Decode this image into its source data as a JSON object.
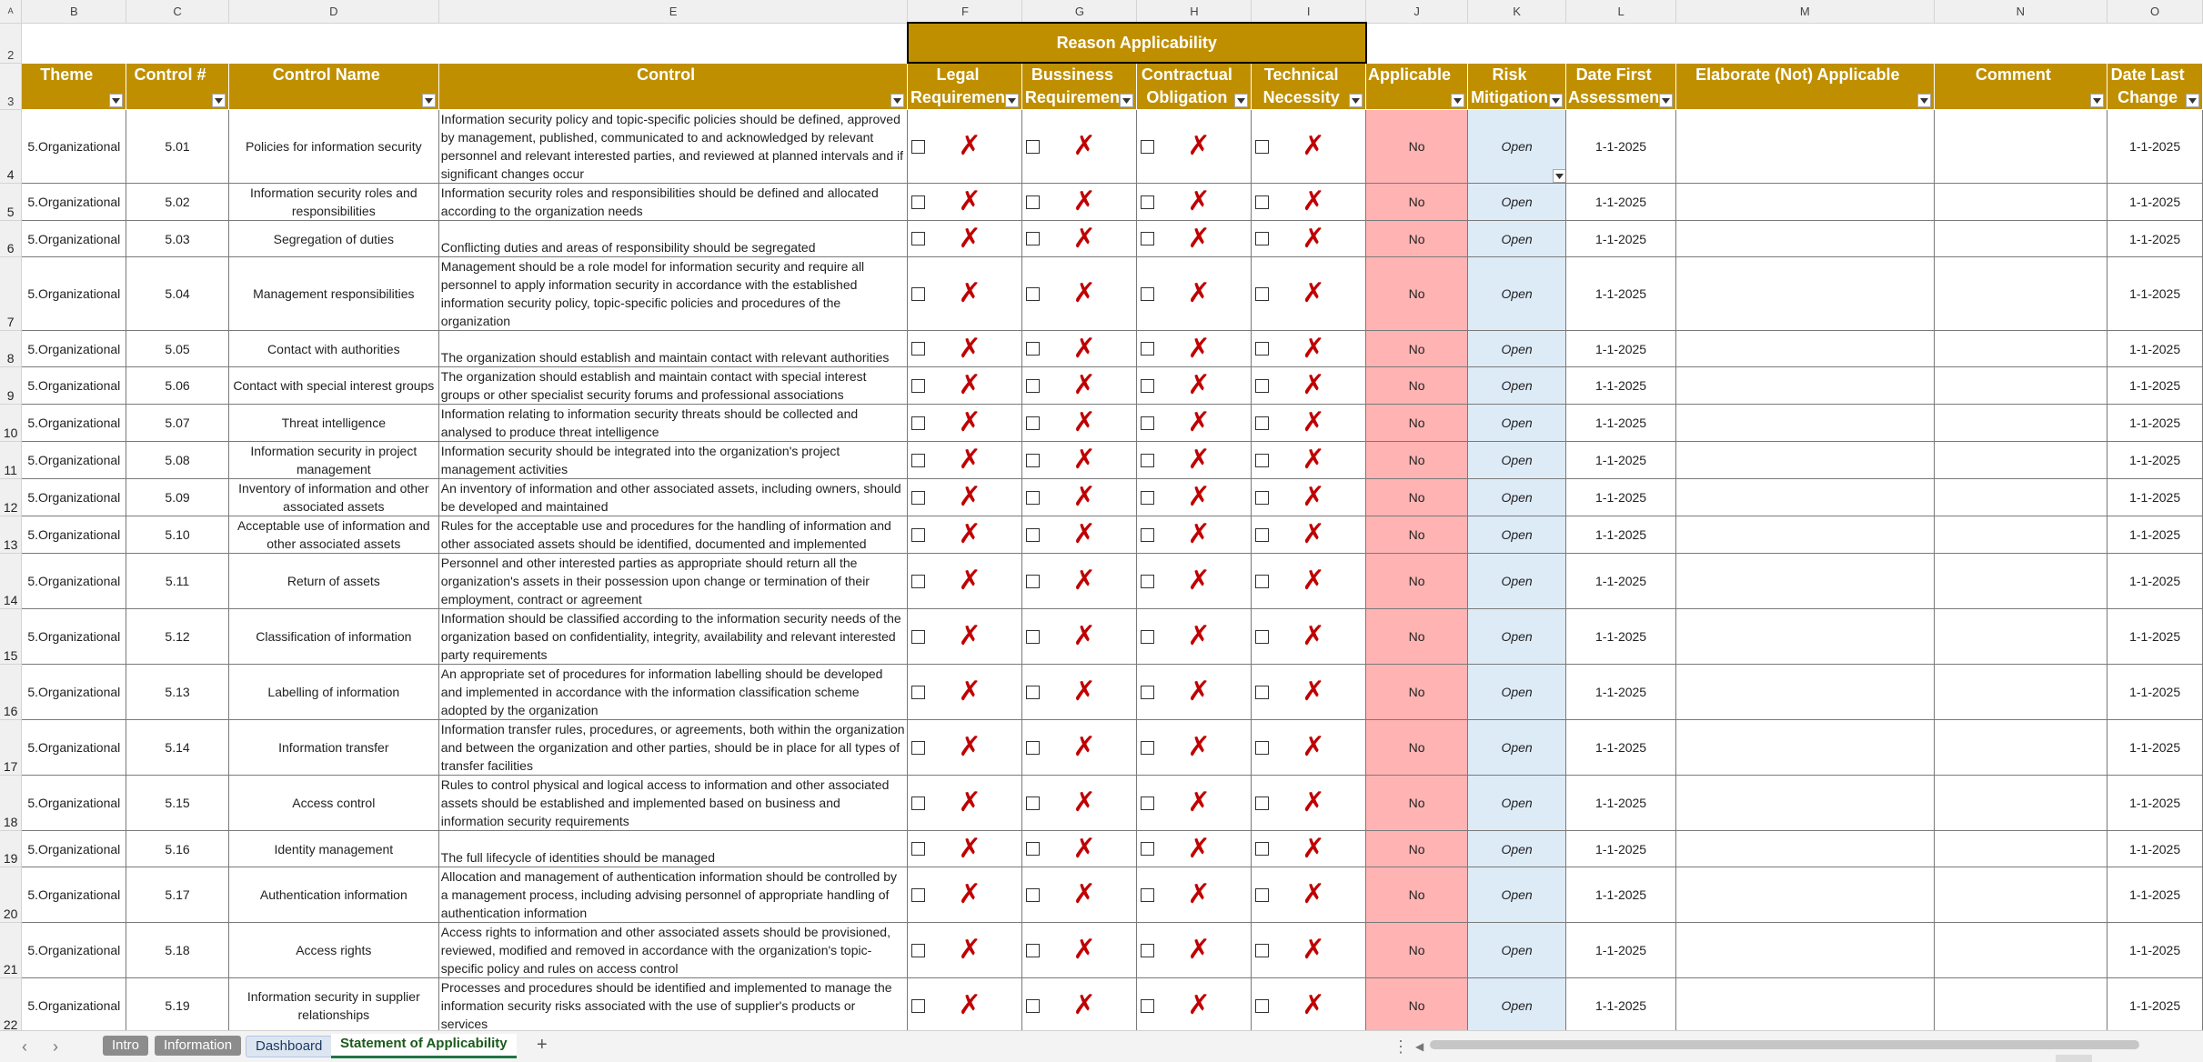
{
  "columns": [
    "A",
    "B",
    "C",
    "D",
    "E",
    "F",
    "G",
    "H",
    "I",
    "J",
    "K",
    "L",
    "M",
    "N",
    "O"
  ],
  "row_numbers": {
    "r2": "2",
    "r3": "3"
  },
  "group_header": "Reason Applicability",
  "headers": {
    "theme": "Theme",
    "control_no": "Control #",
    "control_name": "Control Name",
    "control": "Control",
    "legal": "Legal Requiremen",
    "business": "Bussiness Requiremen",
    "contractual": "Contractual Obligation",
    "technical": "Technical Necessity",
    "applicable": "Applicable",
    "risk": "Risk Mitigation",
    "date_first": "Date First Assessmen",
    "elaborate": "Elaborate (Not) Applicable",
    "comment": "Comment",
    "date_last": "Date Last Change"
  },
  "cross_mark": "✗",
  "rows": [
    {
      "rn": "4",
      "theme": "5.Organizational",
      "id": "5.01",
      "name": "Policies for information security",
      "control": "Information security policy and topic-specific policies should be defined, approved by management, published, communicated to and acknowledged by relevant personnel and relevant interested parties, and reviewed at planned intervals and if significant changes occur",
      "applicable": "No",
      "risk": "Open",
      "date_first": "1-1-2025",
      "date_last": "1-1-2025"
    },
    {
      "rn": "5",
      "theme": "5.Organizational",
      "id": "5.02",
      "name": "Information security roles and responsibilities",
      "control": "Information security roles and responsibilities should be defined and allocated according to the organization needs",
      "applicable": "No",
      "risk": "Open",
      "date_first": "1-1-2025",
      "date_last": "1-1-2025"
    },
    {
      "rn": "6",
      "theme": "5.Organizational",
      "id": "5.03",
      "name": "Segregation of duties",
      "control": "Conflicting duties and areas of responsibility should be segregated",
      "applicable": "No",
      "risk": "Open",
      "date_first": "1-1-2025",
      "date_last": "1-1-2025"
    },
    {
      "rn": "7",
      "theme": "5.Organizational",
      "id": "5.04",
      "name": "Management responsibilities",
      "control": "Management should be a role model for information security and require all personnel to apply information security in accordance with the established information security policy, topic-specific policies and procedures of the organization",
      "applicable": "No",
      "risk": "Open",
      "date_first": "1-1-2025",
      "date_last": "1-1-2025"
    },
    {
      "rn": "8",
      "theme": "5.Organizational",
      "id": "5.05",
      "name": "Contact with authorities",
      "control": "The organization should establish and maintain contact with relevant authorities",
      "applicable": "No",
      "risk": "Open",
      "date_first": "1-1-2025",
      "date_last": "1-1-2025"
    },
    {
      "rn": "9",
      "theme": "5.Organizational",
      "id": "5.06",
      "name": "Contact with special interest groups",
      "control": "The organization should establish and maintain contact with special interest groups or other specialist security forums and professional associations",
      "applicable": "No",
      "risk": "Open",
      "date_first": "1-1-2025",
      "date_last": "1-1-2025"
    },
    {
      "rn": "10",
      "theme": "5.Organizational",
      "id": "5.07",
      "name": "Threat intelligence",
      "control": "Information relating to information security threats should be collected and analysed to produce threat intelligence",
      "applicable": "No",
      "risk": "Open",
      "date_first": "1-1-2025",
      "date_last": "1-1-2025"
    },
    {
      "rn": "11",
      "theme": "5.Organizational",
      "id": "5.08",
      "name": "Information security in project management",
      "control": "Information security should be integrated into the organization's project management activities",
      "applicable": "No",
      "risk": "Open",
      "date_first": "1-1-2025",
      "date_last": "1-1-2025"
    },
    {
      "rn": "12",
      "theme": "5.Organizational",
      "id": "5.09",
      "name": "Inventory of information and other associated assets",
      "control": "An inventory of information and other associated assets, including owners, should be developed and maintained",
      "applicable": "No",
      "risk": "Open",
      "date_first": "1-1-2025",
      "date_last": "1-1-2025"
    },
    {
      "rn": "13",
      "theme": "5.Organizational",
      "id": "5.10",
      "name": "Acceptable use of information and other associated assets",
      "control": "Rules for the acceptable use and procedures for the handling of information and other associated assets should be identified, documented and implemented",
      "applicable": "No",
      "risk": "Open",
      "date_first": "1-1-2025",
      "date_last": "1-1-2025"
    },
    {
      "rn": "14",
      "theme": "5.Organizational",
      "id": "5.11",
      "name": "Return of assets",
      "control": "Personnel and other interested parties as appropriate should return all the organization's assets in their possession upon change or termination of their employment, contract or agreement",
      "applicable": "No",
      "risk": "Open",
      "date_first": "1-1-2025",
      "date_last": "1-1-2025"
    },
    {
      "rn": "15",
      "theme": "5.Organizational",
      "id": "5.12",
      "name": "Classification of information",
      "control": "Information should be classified according to the information security needs of the organization based on confidentiality, integrity, availability and relevant interested party requirements",
      "applicable": "No",
      "risk": "Open",
      "date_first": "1-1-2025",
      "date_last": "1-1-2025"
    },
    {
      "rn": "16",
      "theme": "5.Organizational",
      "id": "5.13",
      "name": "Labelling of information",
      "control": "An appropriate set of procedures for information labelling should be developed and implemented in accordance with the information classification scheme adopted by the organization",
      "applicable": "No",
      "risk": "Open",
      "date_first": "1-1-2025",
      "date_last": "1-1-2025"
    },
    {
      "rn": "17",
      "theme": "5.Organizational",
      "id": "5.14",
      "name": "Information transfer",
      "control": "Information transfer rules, procedures, or agreements, both within the organization and between the organization and other parties, should be in place for all types of transfer facilities",
      "applicable": "No",
      "risk": "Open",
      "date_first": "1-1-2025",
      "date_last": "1-1-2025"
    },
    {
      "rn": "18",
      "theme": "5.Organizational",
      "id": "5.15",
      "name": "Access control",
      "control": "Rules to control physical and logical access to information and other associated assets should be established and implemented based on business and information security requirements",
      "applicable": "No",
      "risk": "Open",
      "date_first": "1-1-2025",
      "date_last": "1-1-2025"
    },
    {
      "rn": "19",
      "theme": "5.Organizational",
      "id": "5.16",
      "name": "Identity management",
      "control": "The full lifecycle of identities should be managed",
      "applicable": "No",
      "risk": "Open",
      "date_first": "1-1-2025",
      "date_last": "1-1-2025"
    },
    {
      "rn": "20",
      "theme": "5.Organizational",
      "id": "5.17",
      "name": "Authentication information",
      "control": "Allocation and management of authentication information should be controlled by a management process, including advising personnel of appropriate handling of authentication information",
      "applicable": "No",
      "risk": "Open",
      "date_first": "1-1-2025",
      "date_last": "1-1-2025"
    },
    {
      "rn": "21",
      "theme": "5.Organizational",
      "id": "5.18",
      "name": "Access rights",
      "control": "Access rights to information and other associated assets should be provisioned, reviewed, modified and removed in accordance with the organization's topic-specific policy and rules on access control",
      "applicable": "No",
      "risk": "Open",
      "date_first": "1-1-2025",
      "date_last": "1-1-2025"
    },
    {
      "rn": "22",
      "theme": "5.Organizational",
      "id": "5.19",
      "name": "Information security in supplier relationships",
      "control": "Processes and procedures should be identified and implemented to manage the information security risks associated with the use of supplier's products or services",
      "applicable": "No",
      "risk": "Open",
      "date_first": "1-1-2025",
      "date_last": "1-1-2025"
    }
  ],
  "tabs": [
    "Intro",
    "Information",
    "Dashboard",
    "Statement of Applicability"
  ],
  "add_sheet": "+",
  "nav": {
    "prev": "‹",
    "next": "›",
    "more": "⋮",
    "scroll_left": "◀"
  }
}
